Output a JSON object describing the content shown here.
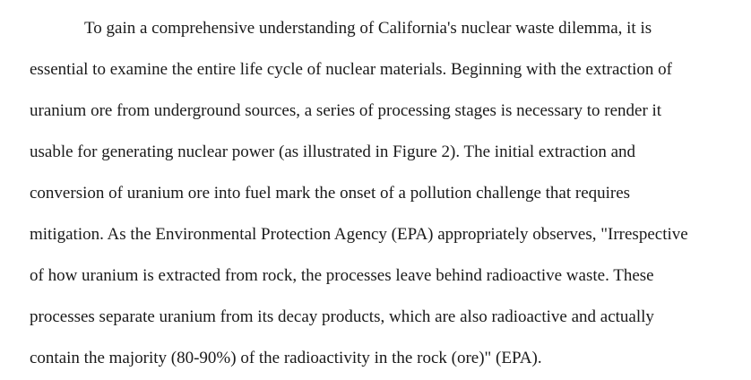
{
  "document": {
    "paragraph": {
      "lines": [
        "To gain a comprehensive understanding of California's nuclear waste dilemma, it is",
        "essential to examine the entire life cycle of nuclear materials. Beginning with the extraction of",
        "uranium ore from underground sources, a series of processing stages is necessary to render it",
        "usable for generating nuclear power (as illustrated in Figure 2). The initial extraction and",
        "conversion of uranium ore into fuel mark the onset of a pollution challenge that requires",
        "mitigation. As the Environmental Protection Agency (EPA) appropriately observes, \"Irrespective",
        "of how uranium is extracted from rock, the processes leave behind radioactive waste. These",
        "processes separate uranium from its decay products, which are also radioactive and actually",
        "contain the majority (80-90%) of the radioactivity in the rock (ore)\" (EPA)."
      ]
    }
  }
}
